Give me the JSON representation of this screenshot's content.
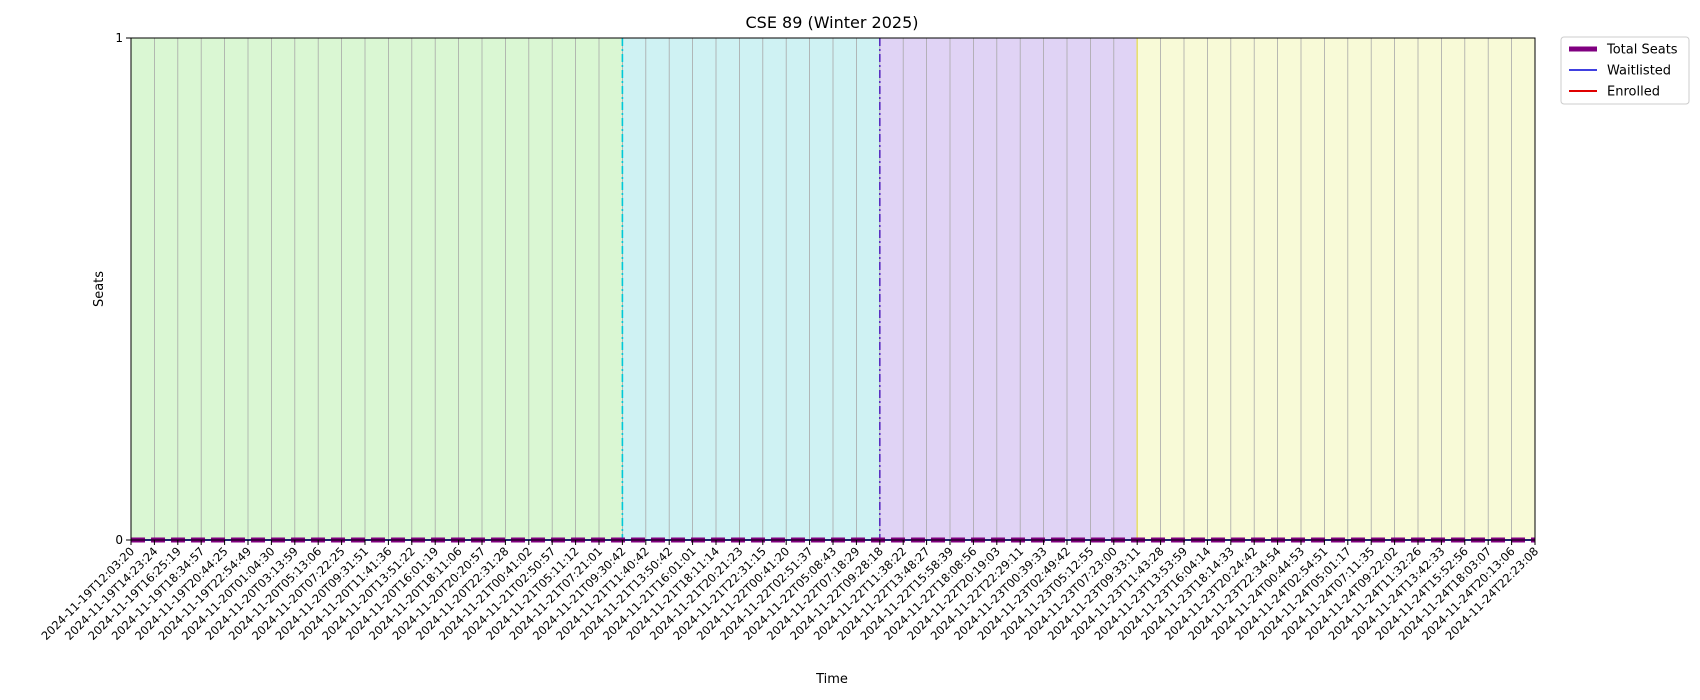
{
  "chart_data": {
    "type": "line",
    "title": "CSE 89 (Winter 2025)",
    "xlabel": "Time",
    "ylabel": "Seats",
    "ylim": [
      0,
      1
    ],
    "y_ticks": [
      "0",
      "1"
    ],
    "x": [
      "2024-11-19T12:03:20",
      "2024-11-19T14:23:24",
      "2024-11-19T16:25:19",
      "2024-11-19T18:34:57",
      "2024-11-19T20:44:25",
      "2024-11-19T22:54:49",
      "2024-11-20T01:04:30",
      "2024-11-20T03:13:59",
      "2024-11-20T05:13:06",
      "2024-11-20T07:22:25",
      "2024-11-20T09:31:51",
      "2024-11-20T11:41:36",
      "2024-11-20T13:51:22",
      "2024-11-20T16:01:19",
      "2024-11-20T18:11:06",
      "2024-11-20T20:20:57",
      "2024-11-20T22:31:28",
      "2024-11-21T00:41:02",
      "2024-11-21T02:50:57",
      "2024-11-21T05:11:12",
      "2024-11-21T07:21:01",
      "2024-11-21T09:30:42",
      "2024-11-21T11:40:42",
      "2024-11-21T13:50:42",
      "2024-11-21T16:01:01",
      "2024-11-21T18:11:14",
      "2024-11-21T20:21:23",
      "2024-11-21T22:31:15",
      "2024-11-22T00:41:20",
      "2024-11-22T02:51:37",
      "2024-11-22T05:08:43",
      "2024-11-22T07:18:29",
      "2024-11-22T09:28:18",
      "2024-11-22T11:38:22",
      "2024-11-22T13:48:27",
      "2024-11-22T15:58:39",
      "2024-11-22T18:08:56",
      "2024-11-22T20:19:03",
      "2024-11-22T22:29:11",
      "2024-11-23T00:39:33",
      "2024-11-23T02:49:42",
      "2024-11-23T05:12:55",
      "2024-11-23T07:23:00",
      "2024-11-23T09:33:11",
      "2024-11-23T11:43:28",
      "2024-11-23T13:53:59",
      "2024-11-23T16:04:14",
      "2024-11-23T18:14:33",
      "2024-11-23T20:24:42",
      "2024-11-23T22:34:54",
      "2024-11-24T00:44:53",
      "2024-11-24T02:54:51",
      "2024-11-24T05:01:17",
      "2024-11-24T07:11:35",
      "2024-11-24T09:22:02",
      "2024-11-24T11:32:26",
      "2024-11-24T13:42:33",
      "2024-11-24T15:52:56",
      "2024-11-24T18:03:07",
      "2024-11-24T20:13:06",
      "2024-11-24T22:23:08"
    ],
    "series": [
      {
        "name": "Total Seats",
        "color": "#800080",
        "style": "dashed",
        "value": 0
      },
      {
        "name": "Waitlisted",
        "color": "#4040e0",
        "style": "solid",
        "value": 0
      },
      {
        "name": "Enrolled",
        "color": "#e00000",
        "style": "solid",
        "value": 0
      }
    ],
    "phases": [
      {
        "from_index": 0,
        "to_index": 21,
        "color": "#daf7d3"
      },
      {
        "from_index": 21,
        "to_index": 32,
        "color": "#cff2f3"
      },
      {
        "from_index": 32,
        "to_index": 43,
        "color": "#e0d3f5"
      },
      {
        "from_index": 43,
        "to_index": 60,
        "color": "#f8fad7"
      }
    ],
    "phase_markers": [
      {
        "index": 21,
        "color": "#00c8d8",
        "style": "dashdot"
      },
      {
        "index": 32,
        "color": "#5a2fc0",
        "style": "dashdot"
      },
      {
        "index": 43,
        "color": "#e8e070",
        "style": "solid"
      }
    ],
    "grid": true,
    "legend": "outside-top-right"
  }
}
